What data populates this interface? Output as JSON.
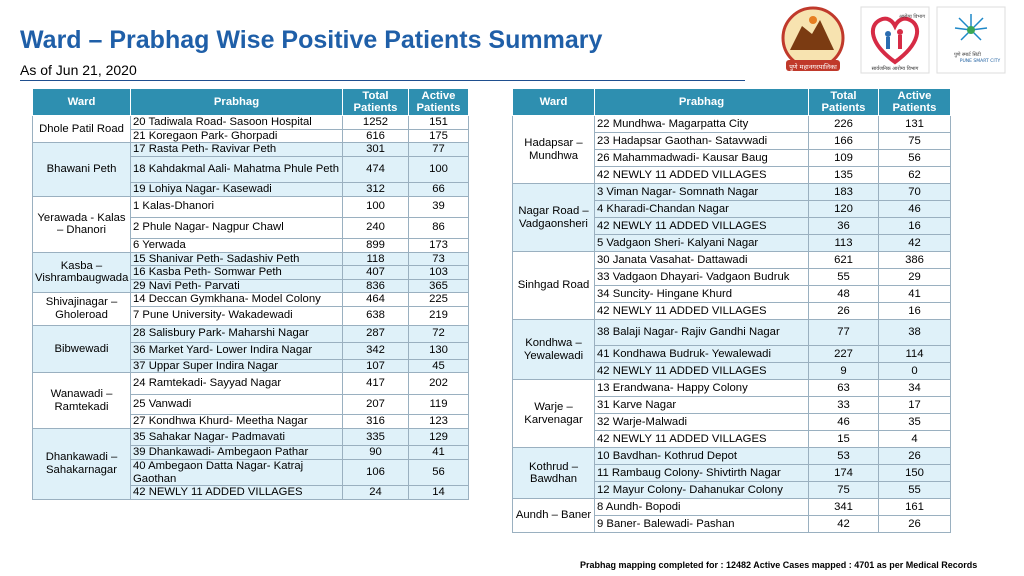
{
  "title": "Ward – Prabhag Wise Positive Patients Summary",
  "subtitle": "As of Jun 21, 2020",
  "logos": {
    "pmc": "पुणे महानगरपालिका",
    "health_dept": "आरोग्य विभाग",
    "health_dept_sub": "सार्वजनिक आरोग्य विभाग",
    "smart_city": "PUNE SMART CITY",
    "smart_city_mr": "पुणे स्मार्ट सिटी"
  },
  "headers": {
    "ward": "Ward",
    "prabhag": "Prabhag",
    "total": "Total Patients",
    "active": "Active Patients"
  },
  "left_table": [
    {
      "ward": "Dhole Patil Road",
      "rows": [
        {
          "prabhag": "20 Tadiwala Road- Sasoon Hospital",
          "total": "1252",
          "active": "151"
        },
        {
          "prabhag": "21 Koregaon Park- Ghorpadi",
          "total": "616",
          "active": "175"
        }
      ]
    },
    {
      "ward": "Bhawani Peth",
      "rows": [
        {
          "prabhag": "17 Rasta Peth- Ravivar Peth",
          "total": "301",
          "active": "77"
        },
        {
          "prabhag": "18 Kahdakmal Aali- Mahatma Phule Peth",
          "total": "474",
          "active": "100"
        },
        {
          "prabhag": "19 Lohiya Nagar- Kasewadi",
          "total": "312",
          "active": "66"
        }
      ]
    },
    {
      "ward": "Yerawada - Kalas – Dhanori",
      "rows": [
        {
          "prabhag": "1 Kalas-Dhanori",
          "total": "100",
          "active": "39"
        },
        {
          "prabhag": "2 Phule Nagar- Nagpur Chawl",
          "total": "240",
          "active": "86"
        },
        {
          "prabhag": "6 Yerwada",
          "total": "899",
          "active": "173"
        }
      ]
    },
    {
      "ward": "Kasba – Vishrambaugwada",
      "rows": [
        {
          "prabhag": "15 Shanivar Peth- Sadashiv Peth",
          "total": "118",
          "active": "73"
        },
        {
          "prabhag": "16 Kasba Peth- Somwar Peth",
          "total": "407",
          "active": "103"
        },
        {
          "prabhag": "29 Navi Peth- Parvati",
          "total": "836",
          "active": "365"
        }
      ]
    },
    {
      "ward": "Shivajinagar – Gholeroad",
      "rows": [
        {
          "prabhag": "14 Deccan Gymkhana- Model Colony",
          "total": "464",
          "active": "225"
        },
        {
          "prabhag": "7 Pune University- Wakadewadi",
          "total": "638",
          "active": "219"
        }
      ]
    },
    {
      "ward": "Bibwewadi",
      "rows": [
        {
          "prabhag": "28 Salisbury Park- Maharshi Nagar",
          "total": "287",
          "active": "72"
        },
        {
          "prabhag": "36 Market Yard- Lower Indira Nagar",
          "total": "342",
          "active": "130"
        },
        {
          "prabhag": "37 Uppar Super Indira Nagar",
          "total": "107",
          "active": "45"
        }
      ]
    },
    {
      "ward": "Wanawadi – Ramtekadi",
      "rows": [
        {
          "prabhag": "24 Ramtekadi- Sayyad Nagar",
          "total": "417",
          "active": "202"
        },
        {
          "prabhag": "25 Vanwadi",
          "total": "207",
          "active": "119"
        },
        {
          "prabhag": "27 Kondhwa Khurd- Meetha Nagar",
          "total": "316",
          "active": "123"
        }
      ]
    },
    {
      "ward": "Dhankawadi – Sahakarnagar",
      "rows": [
        {
          "prabhag": "35 Sahakar Nagar- Padmavati",
          "total": "335",
          "active": "129"
        },
        {
          "prabhag": "39 Dhankawadi- Ambegaon Pathar",
          "total": "90",
          "active": "41"
        },
        {
          "prabhag": "40 Ambegaon Datta Nagar- Katraj Gaothan",
          "total": "106",
          "active": "56"
        },
        {
          "prabhag": "42 NEWLY 11 ADDED VILLAGES",
          "total": "24",
          "active": "14"
        }
      ]
    }
  ],
  "right_table": [
    {
      "ward": "Hadapsar – Mundhwa",
      "rows": [
        {
          "prabhag": "22 Mundhwa- Magarpatta City",
          "total": "226",
          "active": "131"
        },
        {
          "prabhag": "23 Hadapsar Gaothan- Satavwadi",
          "total": "166",
          "active": "75"
        },
        {
          "prabhag": "26 Mahammadwadi- Kausar Baug",
          "total": "109",
          "active": "56"
        },
        {
          "prabhag": "42 NEWLY 11 ADDED VILLAGES",
          "total": "135",
          "active": "62"
        }
      ]
    },
    {
      "ward": "Nagar Road – Vadgaonsheri",
      "rows": [
        {
          "prabhag": "3 Viman Nagar- Somnath Nagar",
          "total": "183",
          "active": "70"
        },
        {
          "prabhag": "4 Kharadi-Chandan Nagar",
          "total": "120",
          "active": "46"
        },
        {
          "prabhag": "42 NEWLY 11 ADDED VILLAGES",
          "total": "36",
          "active": "16"
        },
        {
          "prabhag": "5 Vadgaon Sheri- Kalyani Nagar",
          "total": "113",
          "active": "42"
        }
      ]
    },
    {
      "ward": "Sinhgad Road",
      "rows": [
        {
          "prabhag": "30 Janata Vasahat- Dattawadi",
          "total": "621",
          "active": "386"
        },
        {
          "prabhag": "33 Vadgaon Dhayari- Vadgaon Budruk",
          "total": "55",
          "active": "29"
        },
        {
          "prabhag": "34 Suncity- Hingane Khurd",
          "total": "48",
          "active": "41"
        },
        {
          "prabhag": "42 NEWLY 11 ADDED VILLAGES",
          "total": "26",
          "active": "16"
        }
      ]
    },
    {
      "ward": "Kondhwa – Yewalewadi",
      "rows": [
        {
          "prabhag": "38 Balaji Nagar- Rajiv Gandhi Nagar",
          "total": "77",
          "active": "38"
        },
        {
          "prabhag": "41 Kondhawa Budruk- Yewalewadi",
          "total": "227",
          "active": "114"
        },
        {
          "prabhag": "42 NEWLY 11 ADDED VILLAGES",
          "total": "9",
          "active": "0"
        }
      ]
    },
    {
      "ward": "Warje – Karvenagar",
      "rows": [
        {
          "prabhag": "13 Erandwana- Happy Colony",
          "total": "63",
          "active": "34"
        },
        {
          "prabhag": "31 Karve Nagar",
          "total": "33",
          "active": "17"
        },
        {
          "prabhag": "32 Warje-Malwadi",
          "total": "46",
          "active": "35"
        },
        {
          "prabhag": "42 NEWLY 11 ADDED VILLAGES",
          "total": "15",
          "active": "4"
        }
      ]
    },
    {
      "ward": "Kothrud – Bawdhan",
      "rows": [
        {
          "prabhag": "10 Bavdhan- Kothrud Depot",
          "total": "53",
          "active": "26"
        },
        {
          "prabhag": "11 Rambaug Colony- Shivtirth Nagar",
          "total": "174",
          "active": "150"
        },
        {
          "prabhag": "12 Mayur Colony- Dahanukar Colony",
          "total": "75",
          "active": "55"
        }
      ]
    },
    {
      "ward": "Aundh – Baner",
      "rows": [
        {
          "prabhag": "8 Aundh- Bopodi",
          "total": "341",
          "active": "161"
        },
        {
          "prabhag": "9 Baner- Balewadi- Pashan",
          "total": "42",
          "active": "26"
        }
      ]
    }
  ],
  "footer": "Prabhag mapping  completed for :  12482 Active Cases mapped : 4701  as per Medical Records"
}
